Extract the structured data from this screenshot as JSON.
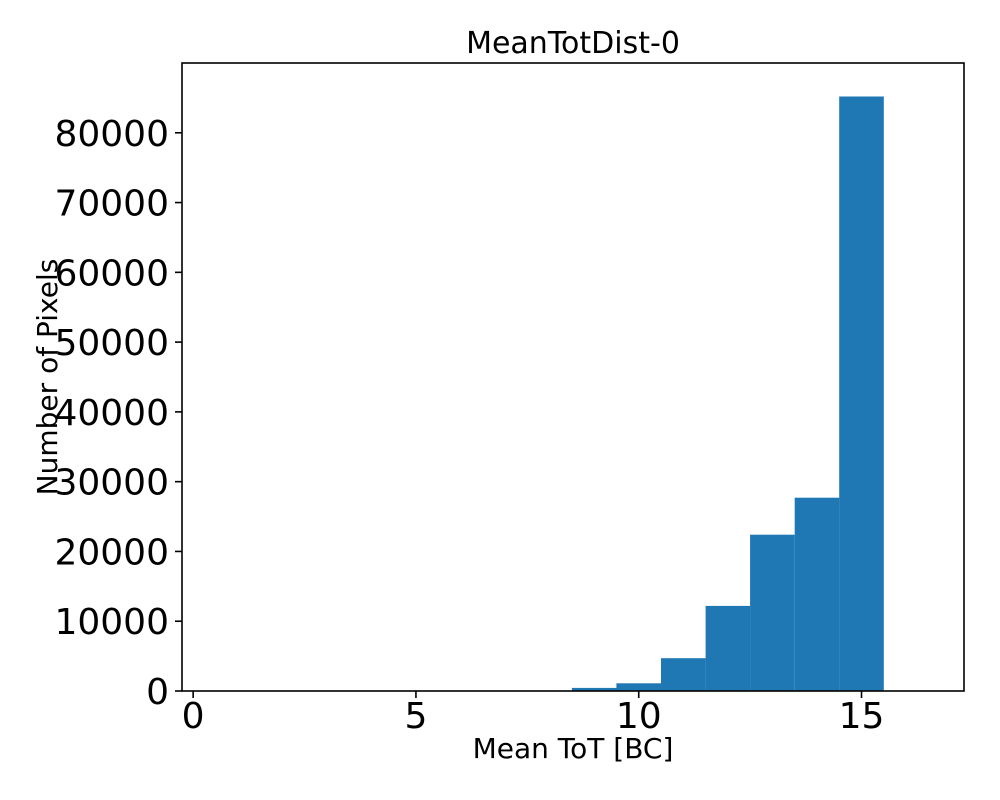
{
  "chart_data": {
    "type": "bar",
    "subtype": "histogram",
    "title": "MeanTotDist-0",
    "xlabel": "Mean ToT [BC]",
    "ylabel": "Number of Pixels",
    "bin_edges": [
      8.5,
      9.5,
      10.5,
      11.5,
      12.5,
      13.5,
      14.5,
      15.5
    ],
    "counts": [
      450,
      1100,
      4700,
      12200,
      22400,
      27700,
      85200
    ],
    "bar_color": "#1f77b4",
    "axis_color": "#000000",
    "background_color": "#ffffff",
    "xlim": [
      -0.25,
      17.3
    ],
    "ylim": [
      0,
      90000
    ],
    "xtick_values": [
      0,
      5,
      10,
      15
    ],
    "xtick_labels": [
      "0",
      "5",
      "10",
      "15"
    ],
    "ytick_values": [
      0,
      10000,
      20000,
      30000,
      40000,
      50000,
      60000,
      70000,
      80000
    ],
    "ytick_labels": [
      "0",
      "10000",
      "20000",
      "30000",
      "40000",
      "50000",
      "60000",
      "70000",
      "80000"
    ],
    "grid": false,
    "legend": null
  }
}
